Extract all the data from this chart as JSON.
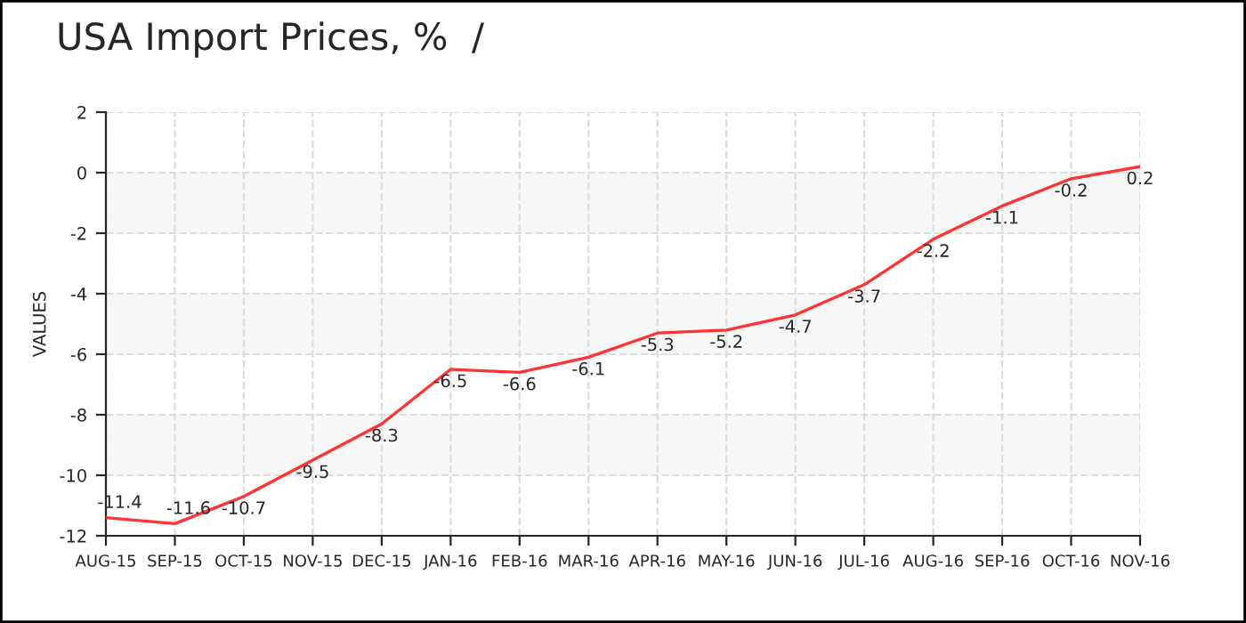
{
  "chart_data": {
    "type": "line",
    "title": "USA Import Prices, %  /",
    "ylabel": "VALUES",
    "categories": [
      "AUG-15",
      "SEP-15",
      "OCT-15",
      "NOV-15",
      "DEC-15",
      "JAN-16",
      "FEB-16",
      "MAR-16",
      "APR-16",
      "MAY-16",
      "JUN-16",
      "JUL-16",
      "AUG-16",
      "SEP-16",
      "OCT-16",
      "NOV-16"
    ],
    "series": [
      {
        "color": "#ff3333",
        "values": [
          -11.4,
          -11.6,
          -10.7,
          -9.5,
          -8.3,
          -6.5,
          -6.6,
          -6.1,
          -5.3,
          -5.2,
          -4.7,
          -3.7,
          -2.2,
          -1.1,
          -0.2,
          0.2
        ]
      }
    ],
    "ylim": [
      -12,
      2
    ],
    "yticks": [
      -12,
      -10,
      -8,
      -6,
      -4,
      -2,
      0,
      2
    ],
    "bands": [
      {
        "axis": "y",
        "from": -2,
        "to": 0,
        "color": "#f7f7f7"
      },
      {
        "axis": "y",
        "from": -6,
        "to": -4,
        "color": "#f7f7f7"
      },
      {
        "axis": "y",
        "from": -10,
        "to": -8,
        "color": "#f7f7f7"
      }
    ],
    "grid": true,
    "data_labels": true,
    "marker": "none",
    "line_style": "solid"
  }
}
